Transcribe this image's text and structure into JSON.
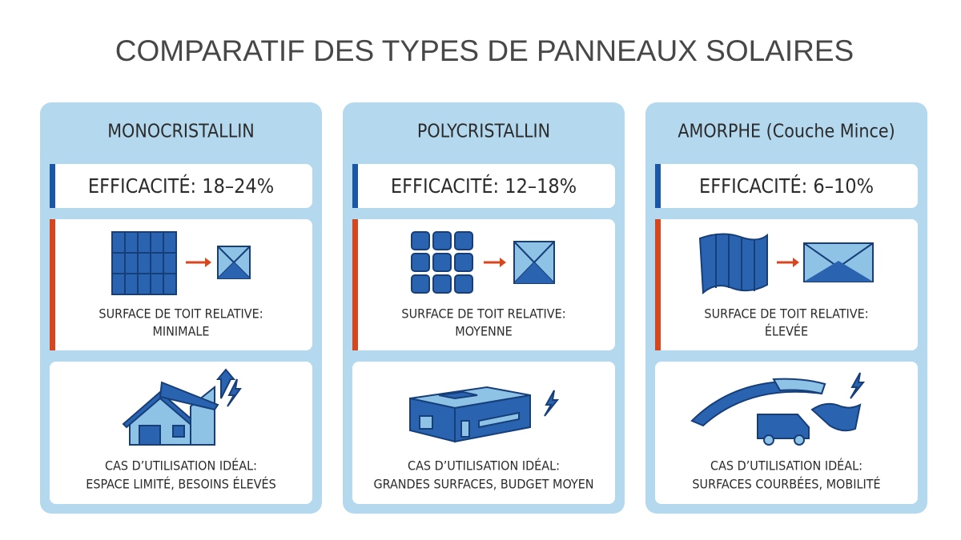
{
  "title": "COMPARATIF DES TYPES DE PANNEAUX SOLAIRES",
  "cards": [
    {
      "name": "MONOCRISTALLIN",
      "efficiency": "EFFICACITÉ: 18–24%",
      "surface_label": "SURFACE DE TOIT RELATIVE:",
      "surface_value": "MINIMALE",
      "use_label": "CAS D’UTILISATION IDÉAL:",
      "use_value": "ESPACE LIMITÉ, BESOINS ÉLEVÉS"
    },
    {
      "name": "POLYCRISTALLIN",
      "efficiency": "EFFICACITÉ: 12–18%",
      "surface_label": "SURFACE DE TOIT RELATIVE:",
      "surface_value": "MOYENNE",
      "use_label": "CAS D’UTILISATION IDÉAL:",
      "use_value": "GRANDES SURFACES, BUDGET MOYEN"
    },
    {
      "name": "AMORPHE (Couche Mince)",
      "efficiency": "EFFICACITÉ: 6–10%",
      "surface_label": "SURFACE DE TOIT RELATIVE:",
      "surface_value": "ÉLEVÉE",
      "use_label": "CAS D’UTILISATION IDÉAL:",
      "use_value": "SURFACES COURBÉES, MOBILITÉ"
    }
  ]
}
